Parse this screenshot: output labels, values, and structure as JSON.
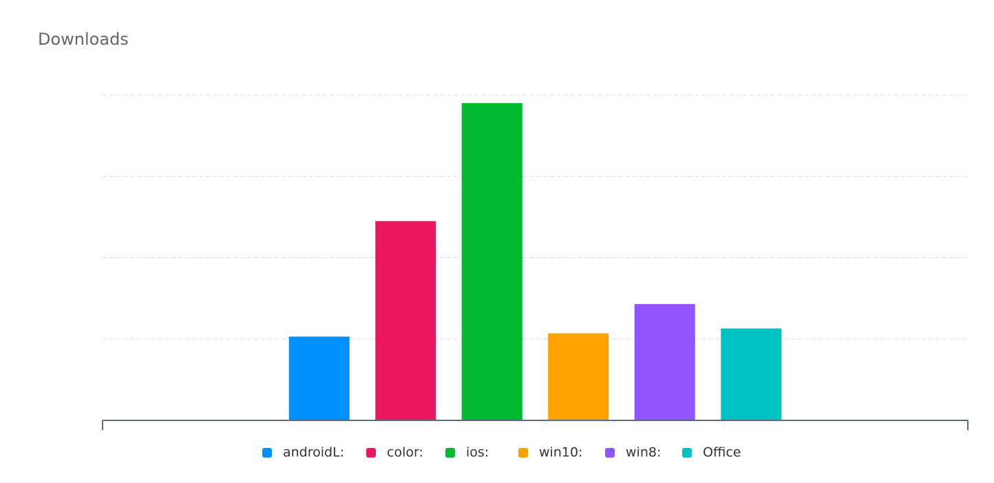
{
  "chart_data": {
    "type": "bar",
    "title": "Downloads",
    "categories": [
      null
    ],
    "series": [
      {
        "name": "androidL:",
        "color": "#0090ff",
        "values": [
          1.03
        ]
      },
      {
        "name": "color:",
        "color": "#eb1860",
        "values": [
          2.45
        ]
      },
      {
        "name": "ios:",
        "color": "#00bb30",
        "values": [
          3.9
        ]
      },
      {
        "name": "win10:",
        "color": "#ffa100",
        "values": [
          1.07
        ]
      },
      {
        "name": "win8:",
        "color": "#9155ff",
        "values": [
          1.43
        ]
      },
      {
        "name": "Office",
        "color": "#00c2c2",
        "values": [
          1.13
        ]
      }
    ],
    "ylim": [
      0,
      4
    ],
    "yticks": [
      1,
      2,
      3,
      4
    ],
    "grid": true
  }
}
